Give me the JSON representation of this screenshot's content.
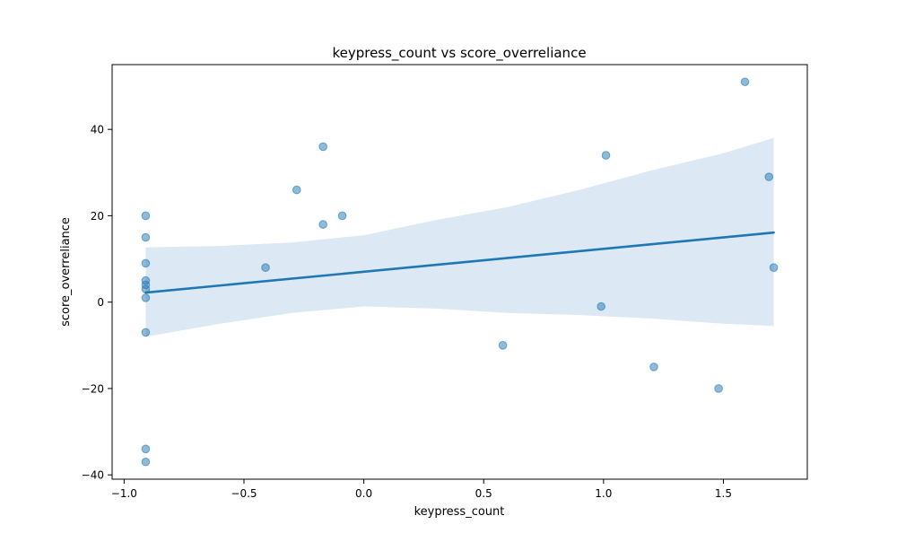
{
  "chart_data": {
    "type": "scatter",
    "title": "keypress_count vs score_overreliance",
    "xlabel": "keypress_count",
    "ylabel": "score_overreliance",
    "xlim": [
      -1.05,
      1.85
    ],
    "ylim": [
      -41.0,
      55.0
    ],
    "xticks": [
      -1.0,
      -0.5,
      0.0,
      0.5,
      1.0,
      1.5
    ],
    "xtick_labels": [
      "−1.0",
      "−0.5",
      "0.0",
      "0.5",
      "1.0",
      "1.5"
    ],
    "yticks": [
      -40,
      -20,
      0,
      20,
      40
    ],
    "ytick_labels": [
      "−40",
      "−20",
      "0",
      "20",
      "40"
    ],
    "grid": false,
    "legend": "none",
    "point_color": "#1f77b4",
    "line_color": "#1f77b4",
    "band_color": "#dce8f3",
    "points": [
      {
        "x": -0.91,
        "y": 20
      },
      {
        "x": -0.91,
        "y": 15
      },
      {
        "x": -0.91,
        "y": 9
      },
      {
        "x": -0.91,
        "y": 5
      },
      {
        "x": -0.91,
        "y": 4
      },
      {
        "x": -0.91,
        "y": 3
      },
      {
        "x": -0.91,
        "y": 1
      },
      {
        "x": -0.91,
        "y": -7
      },
      {
        "x": -0.91,
        "y": -34
      },
      {
        "x": -0.91,
        "y": -37
      },
      {
        "x": -0.41,
        "y": 8
      },
      {
        "x": -0.28,
        "y": 26
      },
      {
        "x": -0.17,
        "y": 36
      },
      {
        "x": -0.17,
        "y": 18
      },
      {
        "x": -0.09,
        "y": 20
      },
      {
        "x": 0.58,
        "y": -10
      },
      {
        "x": 0.99,
        "y": -1
      },
      {
        "x": 1.01,
        "y": 34
      },
      {
        "x": 1.21,
        "y": -15
      },
      {
        "x": 1.48,
        "y": -20
      },
      {
        "x": 1.59,
        "y": 51
      },
      {
        "x": 1.69,
        "y": 29
      },
      {
        "x": 1.71,
        "y": 8
      }
    ],
    "regression_line": {
      "x": [
        -0.91,
        1.71
      ],
      "y": [
        2.2,
        16.1
      ]
    },
    "confidence_band": {
      "x": [
        -0.91,
        -0.6,
        -0.3,
        0.0,
        0.3,
        0.6,
        0.9,
        1.2,
        1.5,
        1.71
      ],
      "upper": [
        12.7,
        13.0,
        13.8,
        15.5,
        19.0,
        22.0,
        26.0,
        30.5,
        34.5,
        38.0
      ],
      "lower": [
        -8.0,
        -5.0,
        -2.5,
        -1.0,
        -1.5,
        -2.5,
        -3.0,
        -3.8,
        -5.0,
        -5.5
      ]
    }
  }
}
